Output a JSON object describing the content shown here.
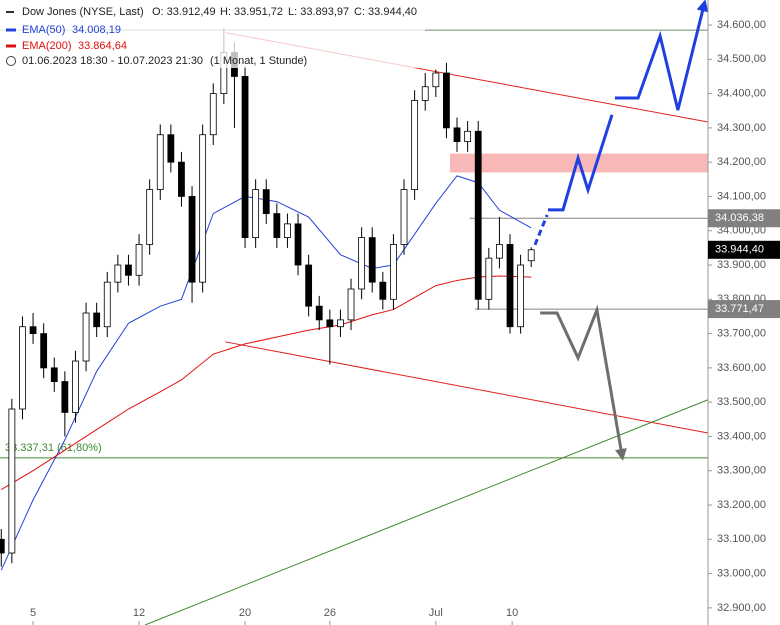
{
  "header": {
    "title": "Dow Jones (NYSE, Last)",
    "open": "O: 33.912,49",
    "high": "H: 33.951,72",
    "low": "L: 33.893,97",
    "close": "C: 33.944,40",
    "ema50_value": "34.008,19",
    "ema200_value": "33.864,64",
    "period": "01.06.2023 18:30 - 10.07.2023 21:30",
    "interval": "(1 Monat, 1 Stunde)"
  },
  "chart_data": {
    "type": "candlestick",
    "x": [
      0.5,
      1,
      1.5,
      2,
      2.5,
      3,
      3.5,
      4,
      4.5,
      5,
      5.5,
      6,
      6.5,
      7,
      7.5,
      8,
      8.5,
      9,
      9.5,
      10,
      10.5,
      11,
      11.5,
      12,
      12.5,
      13,
      13.5,
      14,
      14.5,
      15,
      15.5,
      16,
      16.5,
      17,
      17.5,
      18,
      18.5,
      19,
      19.5,
      20,
      20.5,
      21,
      21.5,
      22,
      22.5,
      23,
      23.5,
      24,
      24.5,
      25,
      25.5
    ],
    "open": [
      33100,
      33060,
      33480,
      33720,
      33700,
      33600,
      33560,
      33470,
      33620,
      33760,
      33720,
      33850,
      33900,
      33870,
      33960,
      34120,
      34280,
      34200,
      34100,
      33850,
      34280,
      34400,
      34520,
      34450,
      33980,
      34120,
      34050,
      33980,
      34020,
      33900,
      33780,
      33740,
      33720,
      33740,
      33830,
      33980,
      33850,
      33800,
      33960,
      34120,
      34380,
      34420,
      34460,
      34300,
      34260,
      34290,
      33800,
      33920,
      33960,
      33720,
      33912.49
    ],
    "high": [
      33130,
      33510,
      33750,
      33760,
      33730,
      33630,
      33590,
      33650,
      33790,
      33790,
      33880,
      33930,
      33930,
      33990,
      34150,
      34310,
      34310,
      34230,
      34130,
      34310,
      34430,
      34590,
      34550,
      34480,
      34150,
      34150,
      34080,
      34050,
      34050,
      33930,
      33810,
      33770,
      33770,
      33860,
      34010,
      34010,
      33880,
      33990,
      34150,
      34410,
      34460,
      34470,
      34490,
      34330,
      34320,
      34320,
      33950,
      34040,
      33990,
      33930,
      33951.72
    ],
    "low": [
      33020,
      33030,
      33450,
      33670,
      33570,
      33530,
      33400,
      33440,
      33590,
      33690,
      33690,
      33820,
      33840,
      33840,
      33930,
      34090,
      34170,
      34070,
      33790,
      33820,
      34250,
      34370,
      34300,
      33950,
      33950,
      34020,
      33950,
      33950,
      33870,
      33750,
      33710,
      33610,
      33690,
      33710,
      33800,
      33820,
      33770,
      33770,
      33930,
      34090,
      34350,
      34390,
      34270,
      34230,
      34230,
      33770,
      33770,
      33890,
      33700,
      33700,
      33893.97
    ],
    "close": [
      33060,
      33480,
      33720,
      33700,
      33600,
      33560,
      33470,
      33620,
      33760,
      33720,
      33850,
      33900,
      33870,
      33960,
      34120,
      34280,
      34200,
      34100,
      33850,
      34280,
      34400,
      34520,
      34450,
      33980,
      34120,
      34050,
      33980,
      34020,
      33900,
      33780,
      33740,
      33720,
      33740,
      33830,
      33980,
      33850,
      33800,
      33960,
      34120,
      34380,
      34420,
      34460,
      34300,
      34260,
      34290,
      33800,
      33920,
      33960,
      33720,
      33900,
      33944.4
    ],
    "up_color": "#ffffff",
    "down_color": "#000000",
    "series": [
      {
        "name": "EMA(50)",
        "color": "#2342d8",
        "x": [
          0.5,
          2,
          3.5,
          5,
          6.5,
          8,
          9,
          10.5,
          12,
          13.5,
          15,
          16.5,
          18,
          19,
          20,
          21,
          22,
          23,
          24,
          25.5
        ],
        "values": [
          33010,
          33215,
          33390,
          33590,
          33730,
          33780,
          33800,
          34050,
          34100,
          34085,
          34040,
          33930,
          33890,
          33900,
          33990,
          34080,
          34160,
          34140,
          34060,
          34008.19
        ]
      },
      {
        "name": "EMA(200)",
        "color": "#e01010",
        "x": [
          0.5,
          2,
          3.5,
          5,
          6.5,
          8,
          9,
          10.5,
          12,
          13.5,
          15,
          16.5,
          18,
          19,
          20,
          21,
          22,
          23,
          24,
          25.5
        ],
        "values": [
          33245,
          33300,
          33360,
          33420,
          33480,
          33530,
          33565,
          33640,
          33670,
          33690,
          33710,
          33725,
          33755,
          33770,
          33805,
          33840,
          33855,
          33865,
          33868,
          33864.64
        ]
      }
    ],
    "xlim": [
      0.44,
      33.84
    ],
    "ylim": [
      32850,
      34673
    ],
    "xticks": [
      {
        "value": 2,
        "label": "5"
      },
      {
        "value": 7,
        "label": "12"
      },
      {
        "value": 12,
        "label": "20"
      },
      {
        "value": 16,
        "label": "26"
      },
      {
        "value": 21,
        "label": "Jul"
      },
      {
        "value": 24.6,
        "label": "10"
      }
    ],
    "yticks": [
      {
        "value": 32900,
        "label": "32.900,00"
      },
      {
        "value": 33000,
        "label": "33.000,00"
      },
      {
        "value": 33100,
        "label": "33.100,00"
      },
      {
        "value": 33200,
        "label": "33.200,00"
      },
      {
        "value": 33300,
        "label": "33.300,00"
      },
      {
        "value": 33400,
        "label": "33.400,00"
      },
      {
        "value": 33500,
        "label": "33.500,00"
      },
      {
        "value": 33600,
        "label": "33.600,00"
      },
      {
        "value": 33700,
        "label": "33.700,00"
      },
      {
        "value": 33800,
        "label": "33.800,00"
      },
      {
        "value": 33900,
        "label": "33.900,00"
      },
      {
        "value": 34000,
        "label": "34.000,00"
      },
      {
        "value": 34100,
        "label": "34.100,00"
      },
      {
        "value": 34200,
        "label": "34.200,00"
      },
      {
        "value": 34300,
        "label": "34.300,00"
      },
      {
        "value": 34400,
        "label": "34.400,00"
      },
      {
        "value": 34500,
        "label": "34.500,00"
      },
      {
        "value": 34600,
        "label": "34.600,00"
      }
    ],
    "levels": [
      {
        "value": 34036.38,
        "label": "34.036,38",
        "color": "#808080",
        "from": 22.6
      },
      {
        "value": 33944.4,
        "label": "33.944,40",
        "color": "#000000"
      },
      {
        "value": 33771.47,
        "label": "33.771,47",
        "color": "#808080",
        "from": 22.85
      }
    ],
    "fib": {
      "value": 33337.31,
      "label": "33.337,31 (61,80%)",
      "color": "#3f8a2f"
    },
    "trendlines": [
      {
        "color": "#e02020",
        "points": [
          [
            11.06,
            34578
          ],
          [
            33.84,
            34317
          ]
        ]
      },
      {
        "color": "#e02020",
        "points": [
          [
            11.06,
            33676
          ],
          [
            33.84,
            33410
          ]
        ]
      },
      {
        "color": "#3f8a2f",
        "points": [
          [
            7.28,
            32850
          ],
          [
            33.84,
            33507
          ]
        ]
      },
      {
        "color": "#6b8e6b",
        "points": [
          [
            0.44,
            34585
          ],
          [
            33.84,
            34585
          ]
        ]
      }
    ],
    "zone": {
      "color": "#f8b8b8",
      "x": [
        21.67,
        33.84
      ],
      "y": [
        34170,
        34225
      ]
    },
    "arrows": [
      {
        "color": "#1f3fe0",
        "dashed": true,
        "points": [
          [
            25.68,
            33959
          ],
          [
            26.25,
            34046
          ]
        ]
      },
      {
        "color": "#1f3fe0",
        "points": [
          [
            26.29,
            34061
          ],
          [
            27.0,
            34061
          ],
          [
            27.71,
            34212
          ],
          [
            28.18,
            34119
          ],
          [
            29.31,
            34338
          ]
        ]
      },
      {
        "color": "#1f3fe0",
        "head": true,
        "points": [
          [
            29.45,
            34387
          ],
          [
            30.54,
            34387
          ],
          [
            31.58,
            34568
          ],
          [
            32.42,
            34352
          ],
          [
            33.65,
            34658
          ]
        ]
      },
      {
        "color": "#6e6e6e",
        "head": true,
        "points": [
          [
            25.92,
            33760
          ],
          [
            26.72,
            33760
          ],
          [
            27.71,
            33629
          ],
          [
            28.6,
            33769
          ],
          [
            29.78,
            33346
          ]
        ]
      }
    ]
  }
}
